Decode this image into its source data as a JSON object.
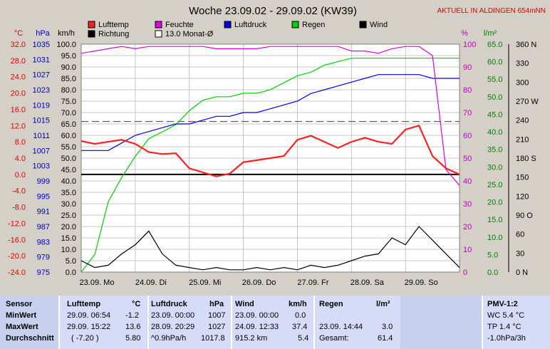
{
  "chart_data": {
    "type": "line",
    "title": "Woche 23.09.02 - 29.09.02 (KW39)",
    "subtitle": "AKTUELL IN ALDINGEN 654mNN",
    "left_axes": [
      {
        "unit": "°C",
        "ticks": [
          "32.0",
          "28.0",
          "24.0",
          "20.0",
          "16.0",
          "12.0",
          "8.0",
          "4.0",
          "0.0",
          "-4.0",
          "-8.0",
          "-12.0",
          "-16.0",
          "-20.0",
          "-24.0"
        ],
        "range": [
          -24,
          32
        ],
        "color": "#e00000"
      },
      {
        "unit": "hPa",
        "ticks": [
          "1035",
          "1031",
          "1027",
          "1023",
          "1019",
          "1015",
          "1011",
          "1007",
          "1003",
          "999",
          "995",
          "991",
          "987",
          "983",
          "979",
          "975"
        ],
        "range": [
          975,
          1035
        ],
        "color": "#0000c0"
      },
      {
        "unit": "km/h",
        "ticks": [
          "100.0",
          "95.0",
          "90.0",
          "85.0",
          "80.0",
          "75.0",
          "70.0",
          "65.0",
          "60.0",
          "55.0",
          "50.0",
          "45.0",
          "40.0",
          "35.0",
          "30.0",
          "25.0",
          "20.0",
          "15.0",
          "10.0",
          "5.0",
          "0.0"
        ],
        "range": [
          0,
          100
        ],
        "color": "#000000"
      }
    ],
    "right_axes": [
      {
        "unit": "%",
        "ticks": [
          "100",
          "90",
          "80",
          "70",
          "60",
          "50",
          "40",
          "30",
          "20",
          "10",
          "0"
        ],
        "range": [
          0,
          100
        ],
        "color": "#c000c0"
      },
      {
        "unit": "l/m²",
        "ticks": [
          "65.0",
          "60.0",
          "55.0",
          "50.0",
          "45.0",
          "40.0",
          "35.0",
          "30.0",
          "25.0",
          "20.0",
          "15.0",
          "10.0",
          "5.0",
          "0.0"
        ],
        "range": [
          0,
          65
        ],
        "color": "#008000"
      },
      {
        "unit": "",
        "ticks": [
          "360 N",
          "330",
          "300",
          "270 W",
          "240",
          "210",
          "180 S",
          "150",
          "120",
          "90 O",
          "60",
          "30",
          "0 N"
        ],
        "range": [
          0,
          360
        ],
        "color": "#000000"
      }
    ],
    "x_ticks": [
      "23.09. Mo",
      "24.09. Di",
      "25.09. Mi",
      "26.09. Do",
      "27.09. Fr",
      "28.09. Sa",
      "29.09. So"
    ],
    "legend": [
      {
        "name": "Lufttemp",
        "color": "#ff2020"
      },
      {
        "name": "Feuchte",
        "color": "#e000e0"
      },
      {
        "name": "Luftdruck",
        "color": "#0000e0"
      },
      {
        "name": "Regen",
        "color": "#00d000"
      },
      {
        "name": "Wind",
        "color": "#000000"
      },
      {
        "name": "Richtung",
        "color": "#000000"
      },
      {
        "name": "13.0 Monat-Ø",
        "color": "#ffffff"
      }
    ],
    "monthly_mean_temp": 13.0,
    "x_days": [
      0,
      0.25,
      0.5,
      0.75,
      1,
      1.25,
      1.5,
      1.75,
      2,
      2.25,
      2.5,
      2.75,
      3,
      3.25,
      3.5,
      3.75,
      4,
      4.25,
      4.5,
      4.75,
      5,
      5.25,
      5.5,
      5.75,
      6,
      6.25,
      6.5,
      6.75,
      7
    ],
    "series": [
      {
        "name": "Lufttemp",
        "axis": 0,
        "color": "#ff2020",
        "values": [
          8.2,
          7.5,
          8.0,
          8.5,
          7.5,
          5.5,
          5.0,
          5.2,
          1.5,
          0.5,
          -0.5,
          0.2,
          3.0,
          3.5,
          4.0,
          4.5,
          8.5,
          9.5,
          8.0,
          6.5,
          8.0,
          9.0,
          8.0,
          7.5,
          11.0,
          12.0,
          4.5,
          1.5,
          0.0
        ]
      },
      {
        "name": "Feuchte",
        "axis": 3,
        "color": "#e000e0",
        "values": [
          96,
          97,
          98,
          99,
          98,
          99,
          99,
          99,
          99,
          99,
          98,
          98,
          98,
          98,
          99,
          99,
          99,
          99,
          99,
          99,
          97,
          97,
          96,
          98,
          99,
          99,
          95,
          45,
          38
        ]
      },
      {
        "name": "Luftdruck",
        "axis": 1,
        "color": "#0000e0",
        "values": [
          1007,
          1007,
          1007,
          1009,
          1011,
          1012,
          1013,
          1014,
          1014,
          1015,
          1016,
          1016,
          1017,
          1017,
          1018,
          1019,
          1020,
          1022,
          1023,
          1024,
          1025,
          1026,
          1027,
          1027,
          1027,
          1027,
          1026,
          1026,
          1026
        ]
      },
      {
        "name": "Regen",
        "axis": 4,
        "color": "#00d000",
        "values": [
          0,
          5,
          20,
          27,
          33,
          38,
          40,
          42,
          46,
          49,
          50,
          50,
          51,
          51,
          52,
          54,
          56,
          57,
          59,
          60,
          61,
          61,
          61,
          61,
          61,
          61,
          61,
          61,
          61
        ]
      },
      {
        "name": "Wind",
        "axis": 2,
        "color": "#000000",
        "values": [
          5,
          2,
          3,
          8,
          12,
          18,
          8,
          3,
          2,
          1,
          2,
          1,
          1,
          2,
          1,
          2,
          1,
          3,
          2,
          3,
          5,
          7,
          8,
          15,
          12,
          20,
          14,
          8,
          2
        ]
      }
    ]
  },
  "stats": {
    "col1": {
      "header": "Sensor",
      "rows": [
        "MinWert",
        "MaxWert",
        "Durchschnitt"
      ]
    },
    "col2": {
      "header": "Lufttemp",
      "unit": "°C",
      "rows": [
        [
          "29.09.  06:54",
          "-1.2"
        ],
        [
          "29.09.  15:22",
          "13.6"
        ],
        [
          "( -7.20 )",
          "5.80"
        ]
      ]
    },
    "col3": {
      "header": "Luftdruck",
      "unit": "hPa",
      "rows": [
        [
          "23.09.  00:00",
          "1007"
        ],
        [
          "28.09.  20:29",
          "1027"
        ],
        [
          "^0.9hPa/h",
          "1017.8"
        ]
      ]
    },
    "col4": {
      "header": "Wind",
      "unit": "km/h",
      "rows": [
        [
          "23.09.  00:00",
          "0.0"
        ],
        [
          "24.09.  12:33",
          "37.4"
        ],
        [
          "915.2 km",
          "5.4"
        ]
      ]
    },
    "col5": {
      "header": "Regen",
      "unit": "l/m²",
      "rows": [
        [
          "",
          ""
        ],
        [
          "23.09.  14:44",
          "3.0"
        ],
        [
          "Gesamt:",
          "61.4"
        ]
      ]
    },
    "col6": {
      "header": "PMV-1:2",
      "rows": [
        "WC 5.4 °C",
        "TP 1.4 °C",
        "-1.0hPa/3h"
      ]
    }
  }
}
